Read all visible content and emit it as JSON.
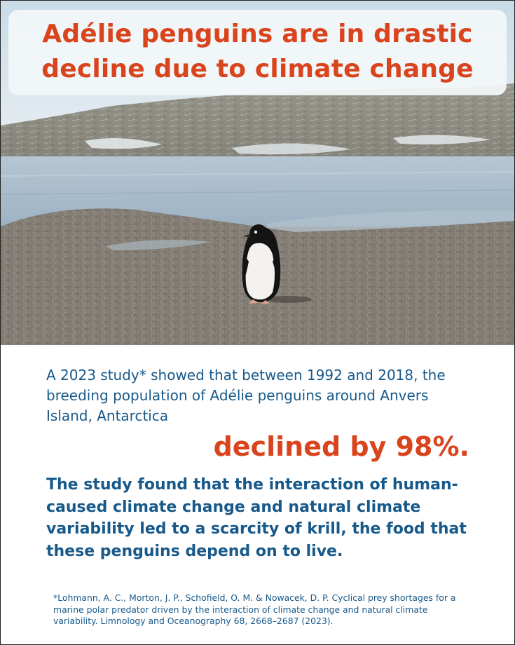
{
  "photo": {
    "subject": "Adélie penguin standing on pebble beach",
    "colors": {
      "sky": "#e3ecf1",
      "water": "#a9bccb",
      "gravel": "#8e877e",
      "penguin_back": "#141414",
      "penguin_belly": "#f3f2ee"
    }
  },
  "headline": {
    "line1": "Adélie penguins are in drastic",
    "line2": "decline due to climate change"
  },
  "body": {
    "intro": "A 2023 study* showed that between 1992 and 2018, the breeding population of Adélie penguins around Anvers Island, Antarctica",
    "stat": "declined by 98%.",
    "finding": "The study found that the interaction of human-caused climate change and natural climate variability led to a scarcity of krill, the food that these penguins depend on to live.",
    "citation": "*Lohmann, A. C., Morton, J. P., Schofield, O. M. & Nowacek, D. P. Cyclical prey shortages for a marine polar predator driven by the interaction of climate change and natural climate variability. Limnology and Oceanography 68, 2668–2687 (2023)."
  },
  "colors": {
    "accent_orange": "#d9441d",
    "text_blue": "#17598a"
  }
}
